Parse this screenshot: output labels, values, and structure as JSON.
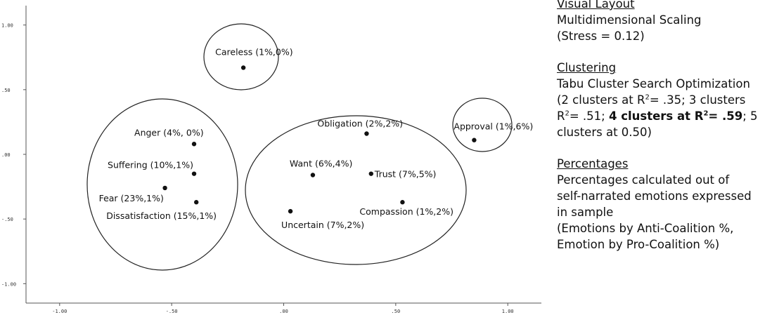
{
  "chart_data": {
    "type": "scatter",
    "x_ticks": [
      "-1.00",
      "-.50",
      ".00",
      ".50",
      "1.00"
    ],
    "y_ticks": [
      "1.00",
      ".50",
      ".00",
      "-.50",
      "-1.00"
    ],
    "xlim": [
      -1.15,
      1.15
    ],
    "ylim": [
      -1.15,
      1.15
    ],
    "points": [
      {
        "label": "Careless (1%,0%)",
        "x": -0.18,
        "y": 0.67
      },
      {
        "label": "Anger (4%, 0%)",
        "x": -0.4,
        "y": 0.08
      },
      {
        "label": "Suffering (10%,1%)",
        "x": -0.4,
        "y": -0.15
      },
      {
        "label": "Fear (23%,1%)",
        "x": -0.53,
        "y": -0.26
      },
      {
        "label": "Dissatisfaction (15%,1%)",
        "x": -0.39,
        "y": -0.37
      },
      {
        "label": "Obligation (2%,2%)",
        "x": 0.37,
        "y": 0.16
      },
      {
        "label": "Want (6%,4%)",
        "x": 0.13,
        "y": -0.16
      },
      {
        "label": "Trust (7%,5%)",
        "x": 0.39,
        "y": -0.15
      },
      {
        "label": "Compassion (1%,2%)",
        "x": 0.53,
        "y": -0.37
      },
      {
        "label": "Uncertain (7%,2%)",
        "x": 0.03,
        "y": -0.44
      },
      {
        "label": "Approval (1%,6%)",
        "x": 0.85,
        "y": 0.11
      }
    ],
    "clusters": [
      {
        "members": [
          "Careless (1%,0%)"
        ]
      },
      {
        "members": [
          "Anger (4%, 0%)",
          "Suffering (10%,1%)",
          "Fear (23%,1%)",
          "Dissatisfaction (15%,1%)"
        ]
      },
      {
        "members": [
          "Obligation (2%,2%)",
          "Want (6%,4%)",
          "Trust (7%,5%)",
          "Compassion (1%,2%)",
          "Uncertain (7%,2%)"
        ]
      },
      {
        "members": [
          "Approval (1%,6%)"
        ]
      }
    ]
  },
  "side_panel": {
    "layout_heading": "Visual Layout",
    "layout_line1": "Multidimensional Scaling",
    "layout_line2": "(Stress = 0.12)",
    "clustering_heading": "Clustering",
    "clustering_line1": "Tabu Cluster Search Optimization",
    "clustering_line2": "(2 clusters at R²= .35; 3 clusters",
    "clustering_line3": "R²= .51; 4 clusters at R²= .59; 5",
    "clustering_line4": "clusters at 0.50)",
    "percentages_heading": "Percentages",
    "percentages_line1": "Percentages calculated out of",
    "percentages_line2": "self-narrated emotions expressed",
    "percentages_line3": "in sample",
    "percentages_line4": "(Emotions by Anti-Coalition %,",
    "percentages_line5": "Emotion by Pro-Coalition %)"
  }
}
